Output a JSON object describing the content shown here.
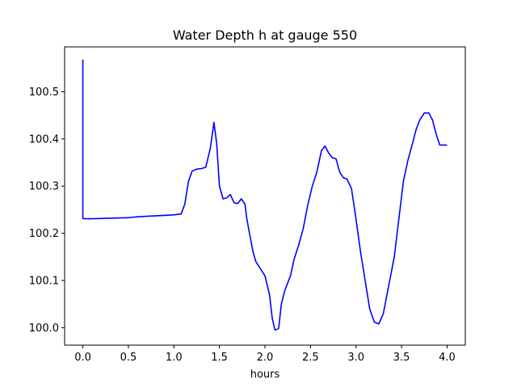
{
  "chart_data": {
    "type": "line",
    "title": "Water Depth h at gauge 550",
    "xlabel": "hours",
    "ylabel": "",
    "xlim": [
      -0.2,
      4.2
    ],
    "ylim": [
      99.963,
      100.595
    ],
    "xticks": [
      0.0,
      0.5,
      1.0,
      1.5,
      2.0,
      2.5,
      3.0,
      3.5,
      4.0
    ],
    "xtick_labels": [
      "0.0",
      "0.5",
      "1.0",
      "1.5",
      "2.0",
      "2.5",
      "3.0",
      "3.5",
      "4.0"
    ],
    "yticks": [
      100.0,
      100.1,
      100.2,
      100.3,
      100.4,
      100.5
    ],
    "ytick_labels": [
      "100.0",
      "100.1",
      "100.2",
      "100.3",
      "100.4",
      "100.5"
    ],
    "grid": false,
    "legend": "none",
    "series_color": "#0000ff",
    "series": [
      {
        "x": [
          0.0,
          0.0,
          0.01,
          0.1,
          0.3,
          0.5,
          0.6,
          0.7,
          0.9,
          1.0,
          1.08,
          1.12,
          1.16,
          1.2,
          1.25,
          1.3,
          1.35,
          1.4,
          1.44,
          1.47,
          1.5,
          1.54,
          1.58,
          1.62,
          1.66,
          1.7,
          1.74,
          1.78,
          1.8,
          1.83,
          1.87,
          1.9,
          1.95,
          2.0,
          2.05,
          2.08,
          2.11,
          2.15,
          2.18,
          2.22,
          2.28,
          2.32,
          2.37,
          2.42,
          2.47,
          2.52,
          2.57,
          2.62,
          2.66,
          2.7,
          2.74,
          2.78,
          2.82,
          2.86,
          2.9,
          2.95,
          3.0,
          3.05,
          3.1,
          3.15,
          3.2,
          3.25,
          3.3,
          3.34,
          3.37,
          3.42,
          3.47,
          3.52,
          3.57,
          3.62,
          3.66,
          3.7,
          3.75,
          3.8,
          3.84,
          3.88,
          3.92,
          3.96,
          4.0
        ],
        "y": [
          100.568,
          100.232,
          100.231,
          100.231,
          100.232,
          100.233,
          100.235,
          100.236,
          100.238,
          100.239,
          100.241,
          100.262,
          100.31,
          100.332,
          100.336,
          100.337,
          100.34,
          100.38,
          100.435,
          100.39,
          100.3,
          100.273,
          100.275,
          100.282,
          100.265,
          100.263,
          100.273,
          100.262,
          100.232,
          100.2,
          100.16,
          100.14,
          100.125,
          100.11,
          100.07,
          100.02,
          99.995,
          99.998,
          100.05,
          100.08,
          100.11,
          100.145,
          100.175,
          100.21,
          100.26,
          100.3,
          100.33,
          100.375,
          100.385,
          100.37,
          100.36,
          100.358,
          100.33,
          100.318,
          100.315,
          100.295,
          100.23,
          100.16,
          100.1,
          100.04,
          100.012,
          100.008,
          100.03,
          100.07,
          100.1,
          100.15,
          100.23,
          100.31,
          100.355,
          100.39,
          100.42,
          100.44,
          100.455,
          100.455,
          100.44,
          100.41,
          100.387,
          100.387,
          100.387
        ]
      }
    ]
  }
}
